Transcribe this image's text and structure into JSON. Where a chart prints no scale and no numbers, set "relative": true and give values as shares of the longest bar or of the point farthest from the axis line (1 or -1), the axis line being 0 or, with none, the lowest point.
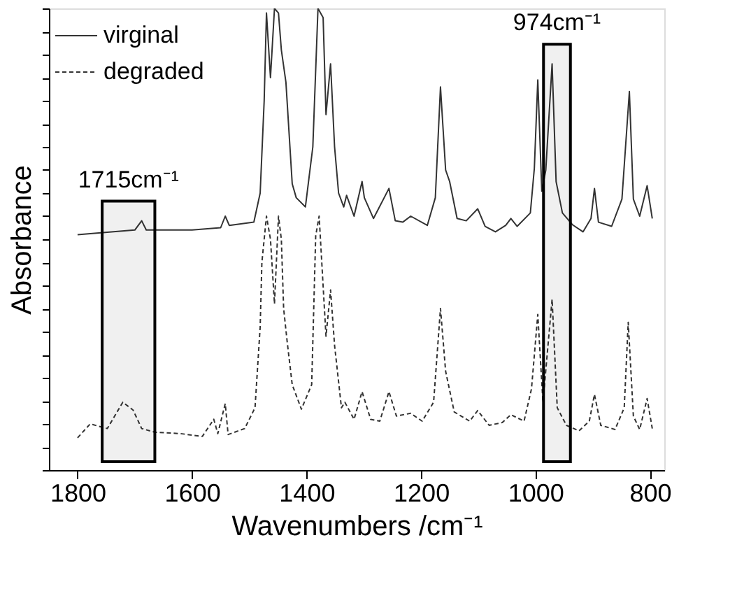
{
  "chart_data": {
    "type": "line",
    "relative": true,
    "xlabel": "Wavenumbers /cm⁻¹",
    "ylabel": "Absorbance",
    "xlim": [
      1850,
      775
    ],
    "xticks": [
      1800,
      1600,
      1400,
      1200,
      1000,
      800
    ],
    "legend": "top left",
    "grid": false,
    "bands": [
      {
        "axis": "x",
        "from": 1757,
        "to": 1665,
        "label": "1715cm⁻¹"
      },
      {
        "axis": "x",
        "from": 986,
        "to": 939,
        "label": "974cm⁻¹"
      }
    ],
    "series": [
      {
        "name": "virginal",
        "color": "#333333",
        "line_style": "solid",
        "x": [
          1800,
          1700,
          1688,
          1680,
          1600,
          1550,
          1542,
          1535,
          1492,
          1481,
          1474,
          1470,
          1463,
          1456,
          1449,
          1444,
          1436,
          1425,
          1418,
          1402,
          1389,
          1380,
          1371,
          1366,
          1358,
          1351,
          1344,
          1335,
          1330,
          1317,
          1303,
          1299,
          1283,
          1256,
          1245,
          1232,
          1218,
          1189,
          1175,
          1166,
          1157,
          1150,
          1137,
          1121,
          1101,
          1088,
          1070,
          1052,
          1043,
          1032,
          1009,
          1002,
          996,
          989,
          982,
          971,
          964,
          953,
          935,
          917,
          903,
          897,
          890,
          867,
          849,
          836,
          829,
          818,
          805,
          796
        ],
        "values": [
          0.51,
          0.52,
          0.54,
          0.52,
          0.52,
          0.525,
          0.55,
          0.53,
          0.537,
          0.6,
          0.8,
          0.99,
          0.85,
          1.0,
          0.99,
          0.91,
          0.84,
          0.62,
          0.59,
          0.57,
          0.7,
          1.0,
          0.98,
          0.77,
          0.88,
          0.7,
          0.6,
          0.57,
          0.595,
          0.55,
          0.625,
          0.59,
          0.545,
          0.61,
          0.54,
          0.537,
          0.55,
          0.53,
          0.59,
          0.83,
          0.65,
          0.625,
          0.545,
          0.54,
          0.566,
          0.528,
          0.516,
          0.53,
          0.545,
          0.528,
          0.557,
          0.654,
          0.845,
          0.604,
          0.65,
          0.88,
          0.625,
          0.557,
          0.531,
          0.516,
          0.545,
          0.61,
          0.537,
          0.528,
          0.587,
          0.82,
          0.587,
          0.55,
          0.616,
          0.545
        ]
      },
      {
        "name": "degraded",
        "color": "#333333",
        "line_style": "dashed",
        "x": [
          1800,
          1778,
          1748,
          1721,
          1703,
          1688,
          1665,
          1620,
          1582,
          1562,
          1555,
          1542,
          1537,
          1508,
          1490,
          1481,
          1478,
          1470,
          1463,
          1456,
          1449,
          1444,
          1440,
          1434,
          1425,
          1409,
          1391,
          1384,
          1378,
          1366,
          1358,
          1351,
          1339,
          1333,
          1317,
          1303,
          1288,
          1272,
          1256,
          1243,
          1218,
          1198,
          1178,
          1166,
          1157,
          1142,
          1115,
          1101,
          1081,
          1058,
          1043,
          1020,
          1007,
          996,
          987,
          971,
          962,
          946,
          924,
          906,
          897,
          886,
          861,
          845,
          838,
          829,
          818,
          805,
          796
        ],
        "values": [
          0.07,
          0.1,
          0.09,
          0.147,
          0.13,
          0.09,
          0.082,
          0.079,
          0.073,
          0.11,
          0.079,
          0.144,
          0.077,
          0.09,
          0.135,
          0.31,
          0.45,
          0.55,
          0.5,
          0.36,
          0.55,
          0.5,
          0.35,
          0.28,
          0.185,
          0.132,
          0.185,
          0.507,
          0.55,
          0.29,
          0.39,
          0.27,
          0.135,
          0.147,
          0.11,
          0.17,
          0.11,
          0.106,
          0.17,
          0.117,
          0.123,
          0.106,
          0.147,
          0.35,
          0.214,
          0.126,
          0.106,
          0.129,
          0.097,
          0.103,
          0.12,
          0.106,
          0.176,
          0.337,
          0.147,
          0.37,
          0.135,
          0.097,
          0.085,
          0.106,
          0.164,
          0.097,
          0.088,
          0.135,
          0.32,
          0.117,
          0.088,
          0.155,
          0.09
        ]
      }
    ]
  }
}
